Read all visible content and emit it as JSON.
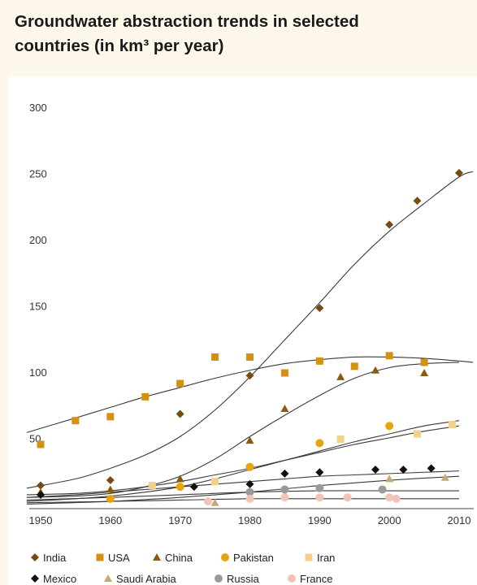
{
  "title_line1": "Groundwater abstraction trends in selected",
  "title_line2": "countries (in km³ per year)",
  "chart_data": {
    "type": "scatter",
    "title": "Groundwater abstraction trends in selected countries (in km³ per year)",
    "xlim": [
      1948,
      2012
    ],
    "ylim": [
      0,
      300
    ],
    "x_ticks": [
      "1950",
      "1960",
      "1970",
      "1980",
      "1990",
      "2000",
      "2010"
    ],
    "y_ticks": [
      "300",
      "250",
      "200",
      "150",
      "100",
      "50"
    ],
    "grid": false,
    "legend_position": "bottom",
    "series": [
      {
        "name": "India",
        "marker": "diamond",
        "color": "#7a4a14",
        "points": [
          [
            1950,
            15
          ],
          [
            1960,
            19
          ],
          [
            1970,
            69
          ],
          [
            1980,
            98
          ],
          [
            1990,
            149
          ],
          [
            2000,
            212
          ],
          [
            2004,
            230
          ],
          [
            2010,
            251
          ]
        ],
        "trend": [
          [
            1948,
            13
          ],
          [
            1955,
            20
          ],
          [
            1960,
            28
          ],
          [
            1965,
            38
          ],
          [
            1970,
            52
          ],
          [
            1975,
            72
          ],
          [
            1980,
            97
          ],
          [
            1985,
            125
          ],
          [
            1990,
            153
          ],
          [
            1995,
            182
          ],
          [
            2000,
            207
          ],
          [
            2005,
            228
          ],
          [
            2010,
            248
          ],
          [
            2012,
            252
          ]
        ]
      },
      {
        "name": "USA",
        "marker": "square",
        "color": "#d4900f",
        "points": [
          [
            1950,
            46
          ],
          [
            1955,
            64
          ],
          [
            1960,
            67
          ],
          [
            1965,
            82
          ],
          [
            1970,
            92
          ],
          [
            1975,
            112
          ],
          [
            1980,
            112
          ],
          [
            1985,
            100
          ],
          [
            1990,
            109
          ],
          [
            1995,
            105
          ],
          [
            2000,
            113
          ],
          [
            2005,
            108
          ]
        ],
        "trend": [
          [
            1948,
            55
          ],
          [
            1955,
            66
          ],
          [
            1960,
            74
          ],
          [
            1965,
            82
          ],
          [
            1970,
            89
          ],
          [
            1975,
            96
          ],
          [
            1980,
            102
          ],
          [
            1985,
            107
          ],
          [
            1990,
            110
          ],
          [
            1995,
            112
          ],
          [
            2000,
            112
          ],
          [
            2005,
            111
          ],
          [
            2010,
            109
          ],
          [
            2012,
            108
          ]
        ]
      },
      {
        "name": "China",
        "marker": "triangle",
        "color": "#8b5a12",
        "points": [
          [
            1950,
            10
          ],
          [
            1960,
            12
          ],
          [
            1970,
            20
          ],
          [
            1980,
            49
          ],
          [
            1985,
            73
          ],
          [
            1993,
            97
          ],
          [
            1998,
            102
          ],
          [
            2005,
            100
          ]
        ],
        "trend": [
          [
            1948,
            6
          ],
          [
            1955,
            7
          ],
          [
            1960,
            9
          ],
          [
            1965,
            14
          ],
          [
            1970,
            22
          ],
          [
            1975,
            35
          ],
          [
            1980,
            52
          ],
          [
            1985,
            68
          ],
          [
            1990,
            83
          ],
          [
            1995,
            96
          ],
          [
            2000,
            104
          ],
          [
            2005,
            107
          ],
          [
            2010,
            108
          ]
        ]
      },
      {
        "name": "Pakistan",
        "marker": "circle",
        "color": "#e8a40c",
        "points": [
          [
            1960,
            5
          ],
          [
            1970,
            14
          ],
          [
            1980,
            29
          ],
          [
            1990,
            47
          ],
          [
            2000,
            60
          ]
        ],
        "trend": [
          [
            1948,
            3
          ],
          [
            1955,
            5
          ],
          [
            1960,
            7
          ],
          [
            1965,
            10
          ],
          [
            1970,
            14
          ],
          [
            1975,
            20
          ],
          [
            1980,
            27
          ],
          [
            1985,
            34
          ],
          [
            1990,
            41
          ],
          [
            1995,
            48
          ],
          [
            2000,
            54
          ],
          [
            2005,
            60
          ],
          [
            2010,
            64
          ]
        ]
      },
      {
        "name": "Iran",
        "marker": "square",
        "color": "#f5d089",
        "points": [
          [
            1966,
            15
          ],
          [
            1975,
            18
          ],
          [
            1993,
            50
          ],
          [
            2004,
            54
          ],
          [
            2009,
            61
          ]
        ],
        "trend": [
          [
            1948,
            8
          ],
          [
            1955,
            9
          ],
          [
            1960,
            11
          ],
          [
            1965,
            14
          ],
          [
            1970,
            18
          ],
          [
            1975,
            23
          ],
          [
            1980,
            28
          ],
          [
            1985,
            34
          ],
          [
            1990,
            40
          ],
          [
            1995,
            46
          ],
          [
            2000,
            51
          ],
          [
            2005,
            56
          ],
          [
            2010,
            60
          ]
        ]
      },
      {
        "name": "Mexico",
        "marker": "diamond",
        "color": "#111111",
        "points": [
          [
            1950,
            8
          ],
          [
            1972,
            14
          ],
          [
            1980,
            16
          ],
          [
            1985,
            24
          ],
          [
            1990,
            25
          ],
          [
            1998,
            27
          ],
          [
            2002,
            27
          ],
          [
            2006,
            28
          ]
        ],
        "trend": [
          [
            1948,
            6
          ],
          [
            1955,
            8
          ],
          [
            1960,
            10
          ],
          [
            1965,
            12
          ],
          [
            1970,
            14
          ],
          [
            1975,
            16
          ],
          [
            1980,
            18
          ],
          [
            1985,
            20
          ],
          [
            1990,
            22
          ],
          [
            1995,
            23
          ],
          [
            2000,
            24
          ],
          [
            2005,
            25
          ],
          [
            2010,
            26
          ]
        ]
      },
      {
        "name": "Saudi Arabia",
        "marker": "triangle",
        "color": "#c9a878",
        "points": [
          [
            1975,
            2
          ],
          [
            1985,
            8
          ],
          [
            1990,
            13
          ],
          [
            2000,
            20
          ],
          [
            2008,
            21
          ]
        ],
        "trend": [
          [
            1948,
            1
          ],
          [
            1960,
            3
          ],
          [
            1970,
            6
          ],
          [
            1980,
            10
          ],
          [
            1990,
            15
          ],
          [
            2000,
            19
          ],
          [
            2010,
            22
          ]
        ]
      },
      {
        "name": "Russia",
        "marker": "circle",
        "color": "#9a9a9a",
        "points": [
          [
            1980,
            10
          ],
          [
            1985,
            12
          ],
          [
            1990,
            13
          ],
          [
            1999,
            12
          ]
        ],
        "trend": [
          [
            1948,
            4
          ],
          [
            1960,
            6
          ],
          [
            1970,
            8
          ],
          [
            1980,
            10
          ],
          [
            1990,
            11
          ],
          [
            2000,
            11
          ],
          [
            2010,
            11
          ]
        ]
      },
      {
        "name": "France",
        "marker": "circle",
        "color": "#f2c4b8",
        "points": [
          [
            1974,
            3
          ],
          [
            1980,
            5
          ],
          [
            1985,
            6
          ],
          [
            1990,
            6
          ],
          [
            1994,
            6
          ],
          [
            2000,
            6
          ],
          [
            2001,
            5
          ]
        ],
        "trend": [
          [
            1948,
            2
          ],
          [
            1960,
            3
          ],
          [
            1970,
            4
          ],
          [
            1980,
            5
          ],
          [
            1990,
            5
          ],
          [
            2000,
            5
          ],
          [
            2010,
            5
          ]
        ]
      }
    ]
  }
}
